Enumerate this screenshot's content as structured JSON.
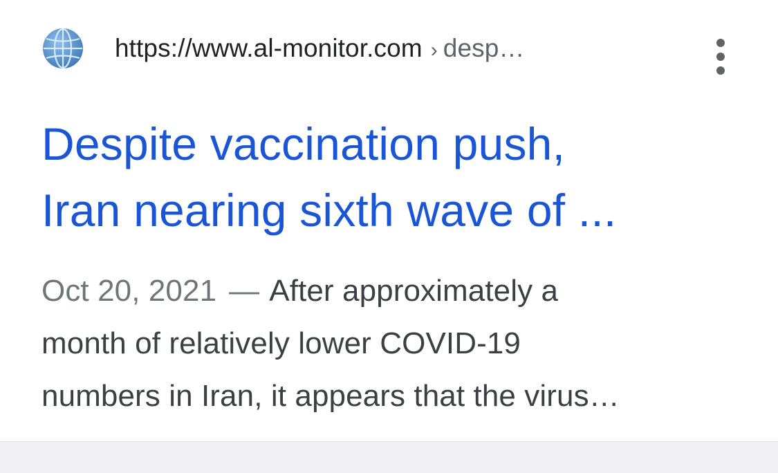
{
  "result": {
    "url_domain": "https://www.al-monitor.com",
    "url_separator": "›",
    "url_path": "desp…",
    "title_line1": "Despite vaccination push,",
    "title_line2": "Iran nearing sixth wave of ...",
    "date": "Oct 20, 2021",
    "dash": "—",
    "snippet_line1": "After approximately a",
    "snippet_line2": "month of relatively lower COVID-19",
    "snippet_line3": "numbers in Iran, it appears that the virus…",
    "favicon_icon": "globe-icon",
    "more_icon": "more-vert-icon"
  },
  "colors": {
    "title": "#1a55d6",
    "url": "#202124",
    "snippet": "#3c4043",
    "date": "#70757a",
    "favicon": "#4a86c5"
  }
}
